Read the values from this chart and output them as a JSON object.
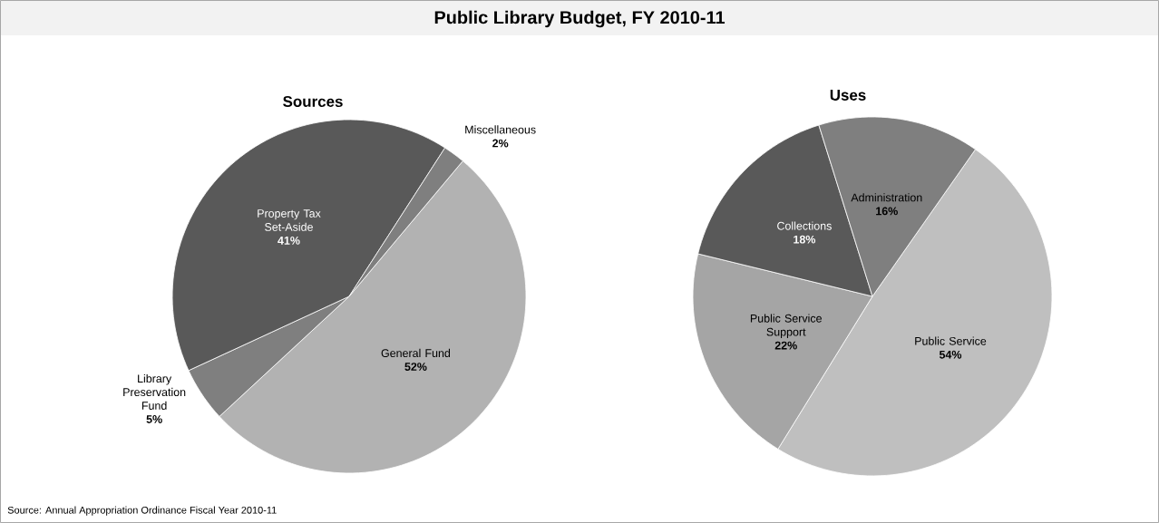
{
  "chart_data": [
    {
      "type": "other",
      "title": "Public Library Budget, FY 2010-11",
      "annotations": [
        "Source: Annual Appropriation Ordinance Fiscal Year 2010-11"
      ]
    },
    {
      "type": "pie",
      "title": "Sources",
      "categories": [
        "General Fund",
        "Library Preservation Fund",
        "Property Tax Set-Aside",
        "Miscellaneous"
      ],
      "values": [
        52,
        5,
        41,
        2
      ],
      "value_labels": [
        "52%",
        "5%",
        "41%",
        "2%"
      ],
      "colors": [
        "#b2b2b2",
        "#7f7f7f",
        "#595959",
        "#7f7f7f"
      ]
    },
    {
      "type": "pie",
      "title": "Uses",
      "categories": [
        "Public Service",
        "Public Service Support",
        "Collections",
        "Administration"
      ],
      "values": [
        54,
        22,
        18,
        16
      ],
      "value_labels": [
        "54%",
        "22%",
        "18%",
        "16%"
      ],
      "colors": [
        "#bfbfbf",
        "#a5a5a5",
        "#595959",
        "#7f7f7f"
      ]
    }
  ]
}
